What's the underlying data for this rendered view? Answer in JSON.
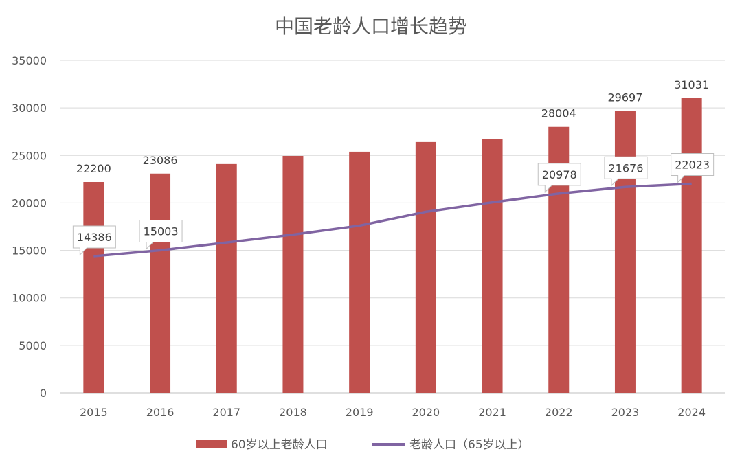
{
  "chart_data": {
    "type": "bar",
    "title": "中国老龄人口增长趋势",
    "categories": [
      "2015",
      "2016",
      "2017",
      "2018",
      "2019",
      "2020",
      "2021",
      "2022",
      "2023",
      "2024"
    ],
    "ylim": [
      0,
      35000
    ],
    "yticks": [
      0,
      5000,
      10000,
      15000,
      20000,
      25000,
      30000,
      35000
    ],
    "grid": true,
    "legend_position": "bottom",
    "series": [
      {
        "name": "60岁以上老龄人口",
        "type": "bar",
        "color": "#c0504d",
        "values": [
          22200,
          23086,
          24090,
          24949,
          25388,
          26402,
          26736,
          28004,
          29697,
          31031
        ],
        "labels": [
          "22200",
          "23086",
          null,
          null,
          null,
          null,
          null,
          "28004",
          "29697",
          "31031"
        ]
      },
      {
        "name": "老龄人口（65岁以上）",
        "type": "line",
        "color": "#8064a2",
        "values": [
          14386,
          15003,
          15831,
          16658,
          17603,
          19064,
          20056,
          20978,
          21676,
          22023
        ],
        "labels": [
          "14386",
          "15003",
          null,
          null,
          null,
          null,
          null,
          "20978",
          "21676",
          "22023"
        ]
      }
    ]
  }
}
